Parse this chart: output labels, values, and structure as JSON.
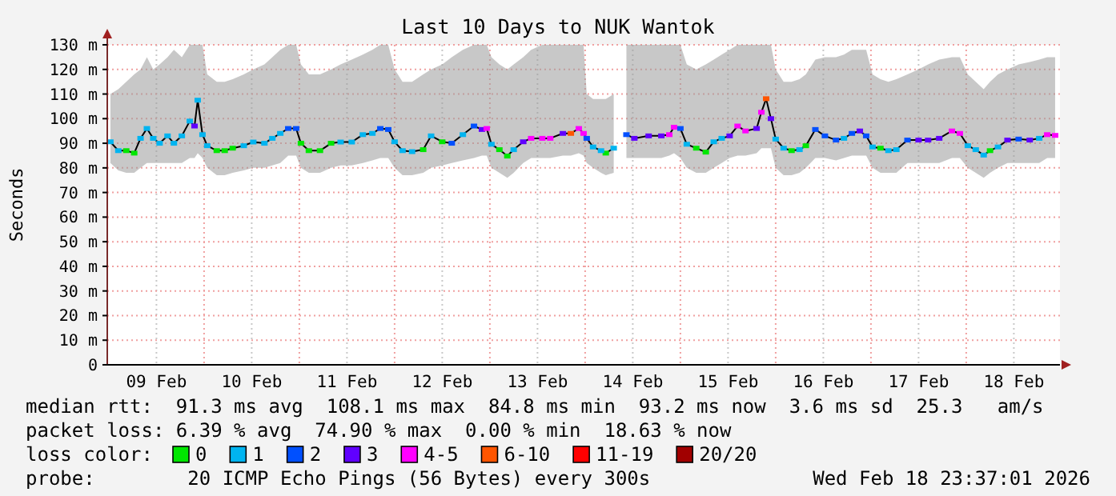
{
  "chart_data": {
    "type": "line",
    "title": "Last 10 Days to NUK Wantok",
    "ylabel": "Seconds",
    "legend": "bottom",
    "legend_title": "loss color:",
    "grid": true,
    "xlim": [
      "2026-02-08T23:37",
      "2026-02-18T23:37"
    ],
    "xticks": [
      {
        "value": "2026-02-09T12:00",
        "label": "09 Feb"
      },
      {
        "value": "2026-02-10T12:00",
        "label": "10 Feb"
      },
      {
        "value": "2026-02-11T12:00",
        "label": "11 Feb"
      },
      {
        "value": "2026-02-12T12:00",
        "label": "12 Feb"
      },
      {
        "value": "2026-02-13T12:00",
        "label": "13 Feb"
      },
      {
        "value": "2026-02-14T12:00",
        "label": "14 Feb"
      },
      {
        "value": "2026-02-15T12:00",
        "label": "15 Feb"
      },
      {
        "value": "2026-02-16T12:00",
        "label": "16 Feb"
      },
      {
        "value": "2026-02-17T12:00",
        "label": "17 Feb"
      },
      {
        "value": "2026-02-18T12:00",
        "label": "18 Feb"
      }
    ],
    "ylim": [
      0,
      130
    ],
    "yticks": [
      0,
      {
        "value": 10,
        "label": "10 m"
      },
      {
        "value": 20,
        "label": "20 m"
      },
      {
        "value": 30,
        "label": "30 m"
      },
      {
        "value": 40,
        "label": "40 m"
      },
      {
        "value": 50,
        "label": "50 m"
      },
      {
        "value": 60,
        "label": "60 m"
      },
      {
        "value": 70,
        "label": "70 m"
      },
      {
        "value": 80,
        "label": "80 m"
      },
      {
        "value": 90,
        "label": "90 m"
      },
      {
        "value": 100,
        "label": "100 m"
      },
      {
        "value": 110,
        "label": "110 m"
      },
      {
        "value": 120,
        "label": "120 m"
      },
      {
        "value": 130,
        "label": "130 m"
      }
    ],
    "ref_lines": [
      {
        "axis": "x",
        "value": "2026-02-10T00:00",
        "color": "#f0a0a0",
        "line_style": "dotted"
      },
      {
        "axis": "x",
        "value": "2026-02-11T00:00",
        "color": "#f0a0a0",
        "line_style": "dotted"
      },
      {
        "axis": "x",
        "value": "2026-02-12T00:00",
        "color": "#f0a0a0",
        "line_style": "dotted"
      },
      {
        "axis": "x",
        "value": "2026-02-13T00:00",
        "color": "#f0a0a0",
        "line_style": "dotted"
      },
      {
        "axis": "x",
        "value": "2026-02-14T00:00",
        "color": "#f0a0a0",
        "line_style": "dotted"
      },
      {
        "axis": "x",
        "value": "2026-02-15T00:00",
        "color": "#f0a0a0",
        "line_style": "dotted"
      },
      {
        "axis": "x",
        "value": "2026-02-16T00:00",
        "color": "#f0a0a0",
        "line_style": "dotted"
      },
      {
        "axis": "x",
        "value": "2026-02-17T00:00",
        "color": "#f0a0a0",
        "line_style": "dotted"
      },
      {
        "axis": "x",
        "value": "2026-02-18T00:00",
        "color": "#f0a0a0",
        "line_style": "dotted"
      }
    ],
    "annotations": [
      "median rtt:  91.3 ms avg  108.1 ms max  84.8 ms min  93.2 ms now  3.6 ms sd  25.3   am/s",
      "packet loss: 6.39 % avg  74.90 % max  0.00 % min  18.63 % now",
      "probe:        20 ICMP Echo Pings (56 Bytes) every 300s",
      "Wed Feb 18 23:37:01 2026"
    ],
    "x": [
      "2026-02-09T00:24",
      "2026-02-09T02:24",
      "2026-02-09T04:24",
      "2026-02-09T06:24",
      "2026-02-09T08:00",
      "2026-02-09T09:36",
      "2026-02-09T11:12",
      "2026-02-09T12:48",
      "2026-02-09T14:48",
      "2026-02-09T16:24",
      "2026-02-09T18:24",
      "2026-02-09T20:24",
      "2026-02-09T21:36",
      "2026-02-09T22:24",
      "2026-02-09T23:36",
      "2026-02-10T00:48",
      "2026-02-10T03:12",
      "2026-02-10T05:12",
      "2026-02-10T07:12",
      "2026-02-10T10:00",
      "2026-02-10T12:24",
      "2026-02-10T15:12",
      "2026-02-10T17:12",
      "2026-02-10T19:12",
      "2026-02-10T21:12",
      "2026-02-10T23:12",
      "2026-02-11T00:24",
      "2026-02-11T02:24",
      "2026-02-11T05:12",
      "2026-02-11T08:00",
      "2026-02-11T10:24",
      "2026-02-11T13:12",
      "2026-02-11T16:00",
      "2026-02-11T18:24",
      "2026-02-11T20:24",
      "2026-02-11T22:24",
      "2026-02-12T00:00",
      "2026-02-12T02:00",
      "2026-02-12T04:24",
      "2026-02-12T07:12",
      "2026-02-12T09:12",
      "2026-02-12T12:00",
      "2026-02-12T14:24",
      "2026-02-12T17:12",
      "2026-02-12T20:00",
      "2026-02-12T22:00",
      "2026-02-12T23:12",
      "2026-02-13T00:24",
      "2026-02-13T02:24",
      "2026-02-13T04:24",
      "2026-02-13T06:00",
      "2026-02-13T08:24",
      "2026-02-13T10:24",
      "2026-02-13T13:12",
      "2026-02-13T15:12",
      "2026-02-13T18:24",
      "2026-02-13T20:24",
      "2026-02-13T22:24",
      "2026-02-13T23:36",
      "2026-02-14T00:24",
      "2026-02-14T02:00",
      "2026-02-14T04:00",
      "2026-02-14T05:12",
      "2026-02-14T07:12",
      "2026-02-14T08:24",
      "2026-02-14T10:24",
      "2026-02-14T12:24",
      "2026-02-14T16:00",
      "2026-02-14T19:12",
      "2026-02-14T21:12",
      "2026-02-14T22:24",
      "2026-02-15T00:00",
      "2026-02-15T01:36",
      "2026-02-15T04:00",
      "2026-02-15T06:24",
      "2026-02-15T08:24",
      "2026-02-15T10:24",
      "2026-02-15T12:24",
      "2026-02-15T14:24",
      "2026-02-15T16:24",
      "2026-02-15T19:12",
      "2026-02-15T20:24",
      "2026-02-15T21:36",
      "2026-02-15T22:48",
      "2026-02-16T00:00",
      "2026-02-16T02:00",
      "2026-02-16T04:00",
      "2026-02-16T06:00",
      "2026-02-16T07:36",
      "2026-02-16T10:00",
      "2026-02-16T12:24",
      "2026-02-16T15:12",
      "2026-02-16T17:12",
      "2026-02-16T19:12",
      "2026-02-16T21:12",
      "2026-02-16T22:48",
      "2026-02-17T00:24",
      "2026-02-17T02:24",
      "2026-02-17T04:24",
      "2026-02-17T06:24",
      "2026-02-17T09:12",
      "2026-02-17T12:00",
      "2026-02-17T14:24",
      "2026-02-17T17:12",
      "2026-02-17T20:24",
      "2026-02-17T22:24",
      "2026-02-18T00:24",
      "2026-02-18T02:24",
      "2026-02-18T04:24",
      "2026-02-18T06:00",
      "2026-02-18T08:00",
      "2026-02-18T10:24",
      "2026-02-18T13:12",
      "2026-02-18T16:00",
      "2026-02-18T18:24",
      "2026-02-18T20:24",
      "2026-02-18T22:24"
    ],
    "series": [
      {
        "color": "#000000",
        "values": [
          90.6,
          87,
          87,
          86,
          92,
          96,
          92,
          90,
          93,
          90,
          93,
          99,
          97,
          107.5,
          93.5,
          89,
          87,
          87,
          88,
          89,
          90.5,
          90,
          92,
          94,
          96,
          96,
          90,
          87,
          87,
          90,
          90.5,
          90.5,
          93.5,
          94,
          96,
          95.6,
          90.6,
          87,
          86.6,
          87.4,
          93,
          90.6,
          90,
          93.5,
          97,
          95.6,
          96,
          89.6,
          87.4,
          84.8,
          87.4,
          90.6,
          92,
          92,
          92,
          94,
          94,
          96,
          94,
          92,
          88.5,
          87,
          86,
          88,
          null,
          93.5,
          92,
          93,
          93,
          93.5,
          96.5,
          96,
          89.6,
          88,
          86.4,
          90.6,
          92,
          93,
          97,
          95,
          96,
          102.6,
          108.1,
          100,
          91.7,
          88,
          87,
          87.4,
          89,
          95.6,
          93,
          91.3,
          92,
          94,
          95,
          93,
          88.5,
          88,
          87,
          87.4,
          91.3,
          91.3,
          91.3,
          92,
          95,
          94,
          89,
          87.4,
          85.2,
          87,
          88.5,
          91.3,
          91.7,
          91.3,
          92,
          93.5,
          93.2
        ],
        "upper": [
          110,
          112,
          115,
          118,
          120,
          125,
          120,
          122,
          125,
          128,
          125,
          130,
          130,
          130,
          130,
          118,
          115,
          115,
          116,
          118,
          120,
          122,
          125,
          128,
          130,
          130,
          122,
          118,
          118,
          120,
          122,
          124,
          126,
          128,
          130,
          130,
          120,
          115,
          115,
          118,
          120,
          122,
          125,
          128,
          130,
          130,
          130,
          125,
          122,
          120,
          122,
          125,
          128,
          130,
          130,
          130,
          130,
          130,
          130,
          110,
          108,
          108,
          108,
          110,
          null,
          130,
          130,
          130,
          130,
          130,
          130,
          130,
          122,
          120,
          122,
          124,
          126,
          128,
          130,
          130,
          130,
          130,
          130,
          130,
          120,
          115,
          115,
          116,
          118,
          124,
          125,
          125,
          126,
          128,
          128,
          128,
          118,
          116,
          115,
          116,
          118,
          120,
          122,
          124,
          125,
          125,
          118,
          115,
          112,
          115,
          118,
          120,
          122,
          123,
          124,
          125,
          125
        ],
        "lower": [
          82,
          79,
          78,
          78,
          80,
          82,
          82,
          82,
          82,
          82,
          82,
          84,
          84,
          86,
          84,
          80,
          77,
          77,
          78,
          79,
          80,
          80,
          81,
          82,
          85,
          85,
          80,
          78,
          78,
          80,
          81,
          81,
          82,
          83,
          84,
          84,
          80,
          77,
          77,
          78,
          80,
          81,
          82,
          83,
          84,
          85,
          85,
          80,
          78,
          76,
          78,
          82,
          84,
          84,
          84,
          85,
          85,
          86,
          85,
          82,
          80,
          78,
          77,
          78,
          null,
          84,
          84,
          84,
          84,
          85,
          86,
          84,
          80,
          78,
          78,
          80,
          82,
          84,
          85,
          85,
          86,
          88,
          88,
          88,
          80,
          77,
          77,
          78,
          80,
          84,
          84,
          83,
          84,
          85,
          85,
          85,
          80,
          78,
          78,
          78,
          82,
          82,
          82,
          82,
          84,
          84,
          80,
          78,
          76,
          78,
          80,
          82,
          82,
          82,
          82,
          84,
          84
        ]
      },
      {
        "name": "0",
        "type": "scatter",
        "color": "#00e600",
        "marker": "square",
        "x": [
          "2026-02-09T04:24",
          "2026-02-09T06:24",
          "2026-02-10T03:12",
          "2026-02-10T05:12",
          "2026-02-10T07:12",
          "2026-02-11T00:24",
          "2026-02-11T02:24",
          "2026-02-11T05:12",
          "2026-02-11T08:00",
          "2026-02-12T07:12",
          "2026-02-12T12:00",
          "2026-02-13T02:24",
          "2026-02-13T04:24",
          "2026-02-14T05:12",
          "2026-02-15T04:00",
          "2026-02-15T06:24",
          "2026-02-16T04:00",
          "2026-02-16T07:36",
          "2026-02-17T02:24",
          "2026-02-18T06:00"
        ],
        "values": [
          87,
          86,
          87,
          87,
          88,
          90,
          87,
          87,
          90,
          87.4,
          90.6,
          87.4,
          84.8,
          86,
          88,
          86.4,
          87,
          89,
          88,
          87
        ]
      },
      {
        "name": "1",
        "type": "scatter",
        "color": "#00b4f0",
        "marker": "square",
        "x": [
          "2026-02-09T00:24",
          "2026-02-09T02:24",
          "2026-02-09T08:00",
          "2026-02-09T09:36",
          "2026-02-09T11:12",
          "2026-02-09T12:48",
          "2026-02-09T14:48",
          "2026-02-09T16:24",
          "2026-02-09T18:24",
          "2026-02-09T20:24",
          "2026-02-09T22:24",
          "2026-02-09T23:36",
          "2026-02-10T00:48",
          "2026-02-10T10:00",
          "2026-02-10T12:24",
          "2026-02-10T15:12",
          "2026-02-10T17:12",
          "2026-02-10T19:12",
          "2026-02-11T10:24",
          "2026-02-11T13:12",
          "2026-02-11T16:00",
          "2026-02-11T18:24",
          "2026-02-12T00:00",
          "2026-02-12T02:00",
          "2026-02-12T04:24",
          "2026-02-12T09:12",
          "2026-02-12T17:12",
          "2026-02-13T00:24",
          "2026-02-13T06:00",
          "2026-02-14T02:00",
          "2026-02-14T04:00",
          "2026-02-14T07:12",
          "2026-02-15T01:36",
          "2026-02-15T08:24",
          "2026-02-15T10:24",
          "2026-02-16T00:00",
          "2026-02-16T02:00",
          "2026-02-16T06:00",
          "2026-02-16T17:12",
          "2026-02-17T00:24",
          "2026-02-17T04:24",
          "2026-02-17T06:24",
          "2026-02-18T00:24",
          "2026-02-18T02:24",
          "2026-02-18T04:24",
          "2026-02-18T08:00",
          "2026-02-18T18:24"
        ],
        "values": [
          90.6,
          87,
          92,
          96,
          92,
          90,
          93,
          90,
          93,
          99,
          107.5,
          93.5,
          89,
          89,
          90.5,
          90,
          92,
          94,
          90.5,
          90.5,
          93.5,
          94,
          90.6,
          87,
          86.6,
          93,
          93.5,
          89.6,
          87.4,
          88.5,
          87,
          88,
          89.6,
          90.6,
          92,
          91.7,
          88,
          87.4,
          92,
          88.5,
          87,
          87.4,
          89,
          87.4,
          85.2,
          88.5,
          92
        ]
      },
      {
        "name": "2",
        "type": "scatter",
        "color": "#0050ff",
        "marker": "square",
        "x": [
          "2026-02-10T21:12",
          "2026-02-10T23:12",
          "2026-02-11T20:24",
          "2026-02-11T22:24",
          "2026-02-12T14:24",
          "2026-02-12T20:00",
          "2026-02-14T00:24",
          "2026-02-14T10:24",
          "2026-02-15T00:00",
          "2026-02-16T10:00",
          "2026-02-16T12:24",
          "2026-02-16T15:12",
          "2026-02-16T19:12",
          "2026-02-16T22:48",
          "2026-02-17T09:12",
          "2026-02-18T13:12"
        ],
        "values": [
          96,
          96,
          96,
          95.6,
          90,
          97,
          92,
          93.5,
          96,
          95.6,
          93,
          91.3,
          94,
          93,
          91.3,
          91.7
        ]
      },
      {
        "name": "3",
        "type": "scatter",
        "color": "#6000ff",
        "marker": "square",
        "x": [
          "2026-02-09T21:36",
          "2026-02-12T22:00",
          "2026-02-13T08:24",
          "2026-02-13T18:24",
          "2026-02-14T12:24",
          "2026-02-14T16:00",
          "2026-02-14T19:12",
          "2026-02-15T12:24",
          "2026-02-15T19:12",
          "2026-02-15T22:48",
          "2026-02-16T21:12",
          "2026-02-17T12:00",
          "2026-02-17T14:24",
          "2026-02-17T17:12",
          "2026-02-18T10:24",
          "2026-02-18T16:00"
        ],
        "values": [
          97,
          95.6,
          90.6,
          94,
          92,
          93,
          93,
          93,
          96,
          100,
          95,
          91.3,
          91.3,
          92,
          91.3,
          91.3
        ]
      },
      {
        "name": "4-5",
        "type": "scatter",
        "color": "#ff00ff",
        "marker": "square",
        "x": [
          "2026-02-12T23:12",
          "2026-02-13T10:24",
          "2026-02-13T13:12",
          "2026-02-13T15:12",
          "2026-02-13T22:24",
          "2026-02-13T23:36",
          "2026-02-14T21:12",
          "2026-02-14T22:24",
          "2026-02-15T14:24",
          "2026-02-15T16:24",
          "2026-02-15T20:24",
          "2026-02-17T20:24",
          "2026-02-17T22:24",
          "2026-02-18T20:24",
          "2026-02-18T22:24"
        ],
        "values": [
          96,
          92,
          92,
          92,
          96,
          94,
          93.5,
          96.5,
          97,
          95,
          102.6,
          95,
          94,
          93.5,
          93.2
        ]
      },
      {
        "name": "6-10",
        "type": "scatter",
        "color": "#ff5500",
        "marker": "square",
        "x": [
          "2026-02-13T20:24",
          "2026-02-15T21:36"
        ],
        "values": [
          94,
          108.1
        ]
      },
      {
        "name": "11-19",
        "type": "scatter",
        "color": "#ff0000",
        "marker": "square",
        "values": [
          null,
          null,
          null,
          null,
          null,
          null,
          null,
          null,
          null,
          null,
          null,
          null,
          null,
          null,
          null,
          null,
          null,
          null,
          null,
          null,
          null,
          null,
          null,
          null,
          null,
          null,
          null,
          null,
          null,
          null,
          null,
          null,
          null,
          null,
          null,
          null,
          null,
          null,
          null,
          null,
          null,
          null,
          null,
          null,
          null,
          null,
          null,
          null,
          null,
          null,
          null,
          null,
          null,
          null,
          null,
          null,
          null,
          null,
          null,
          null,
          null,
          null,
          null,
          null,
          null,
          null,
          null,
          null,
          null,
          null,
          null,
          null,
          null,
          null,
          null,
          null,
          null,
          null,
          null,
          null,
          null,
          null,
          null,
          null,
          null,
          null,
          null,
          null,
          null,
          null,
          null,
          null,
          null,
          null,
          null,
          null,
          null,
          null,
          null,
          null,
          null,
          null,
          null,
          null,
          null,
          null,
          null,
          null,
          null,
          null,
          null,
          null,
          null,
          null,
          null,
          null,
          null
        ]
      },
      {
        "name": "20/20",
        "type": "scatter",
        "color": "#a10000",
        "marker": "square",
        "values": [
          null,
          null,
          null,
          null,
          null,
          null,
          null,
          null,
          null,
          null,
          null,
          null,
          null,
          null,
          null,
          null,
          null,
          null,
          null,
          null,
          null,
          null,
          null,
          null,
          null,
          null,
          null,
          null,
          null,
          null,
          null,
          null,
          null,
          null,
          null,
          null,
          null,
          null,
          null,
          null,
          null,
          null,
          null,
          null,
          null,
          null,
          null,
          null,
          null,
          null,
          null,
          null,
          null,
          null,
          null,
          null,
          null,
          null,
          null,
          null,
          null,
          null,
          null,
          null,
          null,
          null,
          null,
          null,
          null,
          null,
          null,
          null,
          null,
          null,
          null,
          null,
          null,
          null,
          null,
          null,
          null,
          null,
          null,
          null,
          null,
          null,
          null,
          null,
          null,
          null,
          null,
          null,
          null,
          null,
          null,
          null,
          null,
          null,
          null,
          null,
          null,
          null,
          null,
          null,
          null,
          null,
          null,
          null,
          null,
          null,
          null,
          null,
          null,
          null,
          null,
          null,
          null
        ]
      }
    ]
  }
}
